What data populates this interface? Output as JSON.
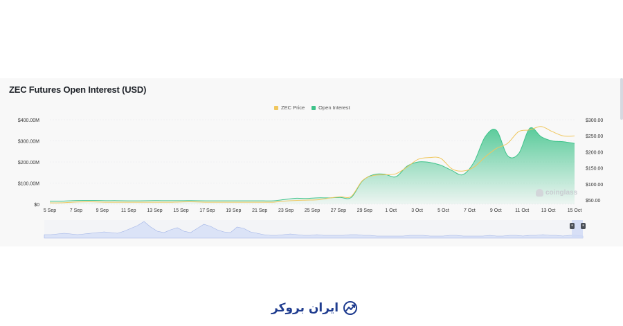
{
  "chart_data": {
    "type": "area",
    "title": "ZEC Futures Open Interest (USD)",
    "legend": {
      "placement": "top-center"
    },
    "series": [
      {
        "name": "ZEC Price",
        "axis": "right",
        "kind": "line",
        "color": "#f0c75e",
        "values": [
          54,
          54,
          56,
          57,
          57,
          56,
          56,
          56,
          56,
          56,
          56,
          56,
          57,
          57,
          56,
          56,
          56,
          56,
          56,
          56,
          56,
          59,
          61,
          62,
          63,
          68,
          72,
          73,
          120,
          135,
          137,
          140,
          160,
          183,
          188,
          186,
          155,
          148,
          160,
          190,
          215,
          230,
          265,
          270,
          280,
          265,
          252,
          252
        ]
      },
      {
        "name": "Open Interest",
        "axis": "left",
        "kind": "area",
        "color": "#3ec38a",
        "values": [
          14,
          14,
          17,
          18,
          18,
          17,
          17,
          16,
          16,
          17,
          17,
          17,
          17,
          17,
          16,
          16,
          16,
          16,
          16,
          16,
          16,
          22,
          28,
          27,
          30,
          30,
          32,
          32,
          110,
          140,
          142,
          130,
          180,
          200,
          198,
          185,
          160,
          140,
          200,
          320,
          350,
          230,
          240,
          360,
          320,
          300,
          296,
          288
        ]
      }
    ],
    "x": [
      "5 Sep",
      "6 Sep",
      "7 Sep",
      "8 Sep",
      "9 Sep",
      "10 Sep",
      "11 Sep",
      "12 Sep",
      "13 Sep",
      "14 Sep",
      "15 Sep",
      "16 Sep",
      "17 Sep",
      "18 Sep",
      "19 Sep",
      "20 Sep",
      "21 Sep",
      "22 Sep",
      "23 Sep",
      "24 Sep",
      "25 Sep",
      "26 Sep",
      "27 Sep",
      "28 Sep",
      "29 Sep",
      "30 Sep",
      "1 Oct",
      "2 Oct",
      "3 Oct",
      "4 Oct",
      "5 Oct",
      "6 Oct",
      "7 Oct",
      "8 Oct",
      "9 Oct",
      "9.5 Oct",
      "10 Oct",
      "10.5 Oct",
      "11 Oct",
      "11.5 Oct",
      "12 Oct",
      "12.5 Oct",
      "13 Oct",
      "13.5 Oct",
      "14 Oct",
      "14.5 Oct",
      "15 Oct",
      "15.2 Oct"
    ],
    "x_tick_labels": [
      "5 Sep",
      "7 Sep",
      "9 Sep",
      "11 Sep",
      "13 Sep",
      "15 Sep",
      "17 Sep",
      "19 Sep",
      "21 Sep",
      "23 Sep",
      "25 Sep",
      "27 Sep",
      "29 Sep",
      "1 Oct",
      "3 Oct",
      "5 Oct",
      "7 Oct",
      "9 Oct",
      "11 Oct",
      "13 Oct",
      "15 Oct"
    ],
    "y_left": {
      "ticks": [
        "$0",
        "$100.00M",
        "$200.00M",
        "$300.00M",
        "$400.00M"
      ],
      "range": [
        0,
        400
      ]
    },
    "y_right": {
      "ticks": [
        "$50.00",
        "$100.00",
        "$150.00",
        "$200.00",
        "$250.00",
        "$300.00"
      ],
      "range": [
        50,
        300
      ]
    },
    "navigator": {
      "values": [
        5,
        5,
        6,
        7,
        6,
        5,
        6,
        7,
        8,
        9,
        8,
        7,
        10,
        14,
        18,
        24,
        16,
        10,
        8,
        12,
        15,
        10,
        8,
        14,
        20,
        17,
        12,
        9,
        8,
        16,
        14,
        9,
        7,
        5,
        4,
        4,
        5,
        6,
        5,
        4,
        4,
        5,
        4,
        4,
        4,
        4,
        5,
        5,
        4,
        4,
        3,
        3,
        3,
        3,
        3,
        4,
        4,
        4,
        3,
        3,
        3,
        4,
        4,
        3,
        3,
        3,
        3,
        4,
        3,
        3,
        4,
        4,
        3,
        4,
        4,
        5,
        4,
        4,
        3,
        4,
        4,
        3
      ]
    },
    "watermark": "coinglass"
  },
  "navigator_handles": [
    "⏸",
    "⏸"
  ],
  "brand": {
    "name": "ایران بروکر"
  }
}
